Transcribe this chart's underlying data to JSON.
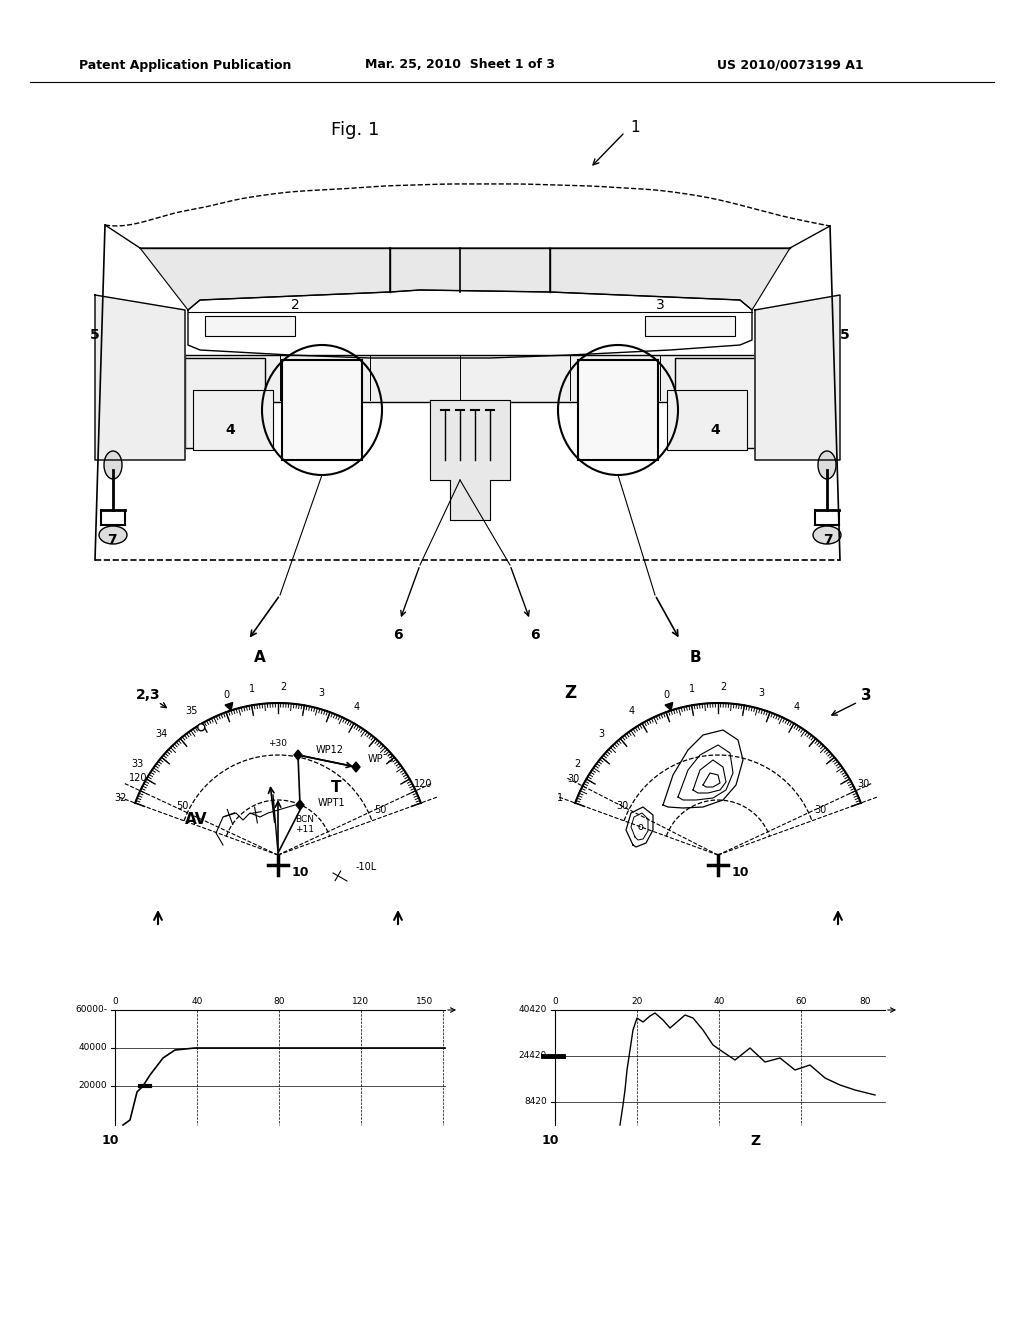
{
  "bg_color": "#ffffff",
  "title_left": "Patent Application Publication",
  "title_mid": "Mar. 25, 2010  Sheet 1 of 3",
  "title_right": "US 2010/0073199 A1"
}
